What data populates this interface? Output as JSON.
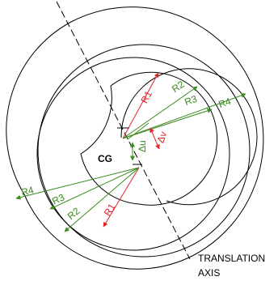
{
  "labels": {
    "cg": "CG",
    "r1_top": "R1",
    "r2_top": "R2",
    "r3_top": "R3",
    "r4_top": "R4",
    "r1_bottom": "R1",
    "r2_bottom": "R2",
    "r3_bottom": "R3",
    "r4_bottom": "R4",
    "delta_u": "Δu",
    "delta_v": "Δv",
    "translation_axis_line1": "TRANSLATION",
    "translation_axis_line2": "AXIS"
  },
  "colors": {
    "line": "#000000",
    "r1": "#e0242b",
    "green": "#3a8a1e",
    "delta_v": "#e0242b"
  }
}
